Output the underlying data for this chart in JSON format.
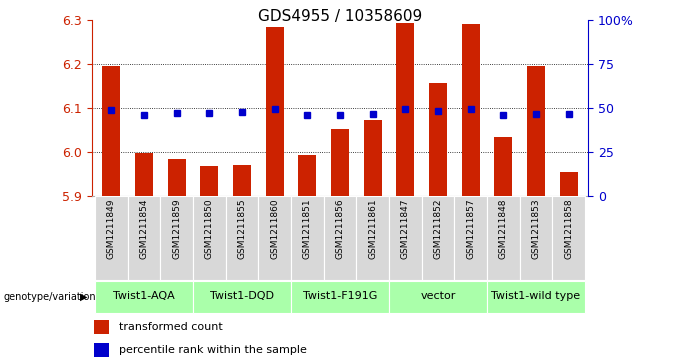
{
  "title": "GDS4955 / 10358609",
  "samples": [
    "GSM1211849",
    "GSM1211854",
    "GSM1211859",
    "GSM1211850",
    "GSM1211855",
    "GSM1211860",
    "GSM1211851",
    "GSM1211856",
    "GSM1211861",
    "GSM1211847",
    "GSM1211852",
    "GSM1211857",
    "GSM1211848",
    "GSM1211853",
    "GSM1211858"
  ],
  "bar_values": [
    6.195,
    5.998,
    5.985,
    5.968,
    5.97,
    6.283,
    5.993,
    6.053,
    6.072,
    6.293,
    6.157,
    6.291,
    6.035,
    6.195,
    5.955
  ],
  "dot_values": [
    6.095,
    6.083,
    6.088,
    6.088,
    6.09,
    6.097,
    6.083,
    6.083,
    6.086,
    6.097,
    6.093,
    6.097,
    6.083,
    6.086,
    6.087
  ],
  "ymin": 5.9,
  "ymax": 6.3,
  "yticks_left": [
    5.9,
    6.0,
    6.1,
    6.2,
    6.3
  ],
  "grid_lines": [
    6.0,
    6.1,
    6.2
  ],
  "bar_color": "#cc2200",
  "dot_color": "#0000cc",
  "right_yticks_pct": [
    0,
    25,
    50,
    75,
    100
  ],
  "right_yticklabels": [
    "0",
    "25",
    "50",
    "75",
    "100%"
  ],
  "groups": [
    {
      "label": "Twist1-AQA",
      "start": 0,
      "end": 2
    },
    {
      "label": "Twist1-DQD",
      "start": 3,
      "end": 5
    },
    {
      "label": "Twist1-F191G",
      "start": 6,
      "end": 8
    },
    {
      "label": "vector",
      "start": 9,
      "end": 11
    },
    {
      "label": "Twist1-wild type",
      "start": 12,
      "end": 14
    }
  ],
  "group_color": "#aaffaa",
  "sample_box_color": "#d8d8d8",
  "legend": [
    {
      "label": "transformed count",
      "color": "#cc2200"
    },
    {
      "label": "percentile rank within the sample",
      "color": "#0000cc"
    }
  ],
  "title_fontsize": 11,
  "ylabel_fontsize": 9,
  "tick_fontsize": 9,
  "sample_fontsize": 6.5,
  "group_fontsize": 8,
  "legend_fontsize": 8,
  "geno_label": "genotype/variation"
}
